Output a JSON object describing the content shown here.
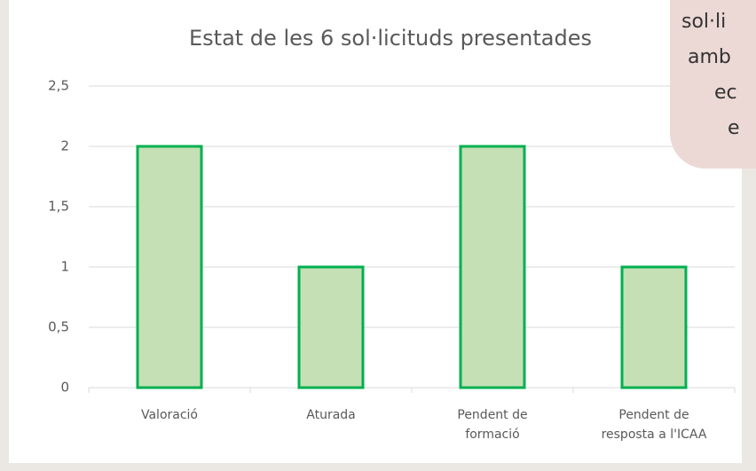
{
  "chart_data": {
    "type": "bar",
    "title": "Estat de les 6 sol·licituds presentades",
    "categories": [
      "Valoració",
      "Aturada",
      "Pendent de formació",
      "Pendent de resposta a l'ICAA"
    ],
    "values": [
      2,
      1,
      2,
      1
    ],
    "color": "#c5e0b4",
    "edge_color": "#00b050",
    "ylim": [
      0,
      2.5
    ],
    "yticks": [
      0,
      {
        "value": 0.5,
        "label": "0,5"
      },
      1,
      {
        "value": 1.5,
        "label": "1,5"
      },
      2,
      {
        "value": 2.5,
        "label": "2,5"
      }
    ],
    "grid": true
  },
  "overlay": {
    "lines": [
      "sol·li",
      "amb",
      "ec",
      "e"
    ]
  }
}
